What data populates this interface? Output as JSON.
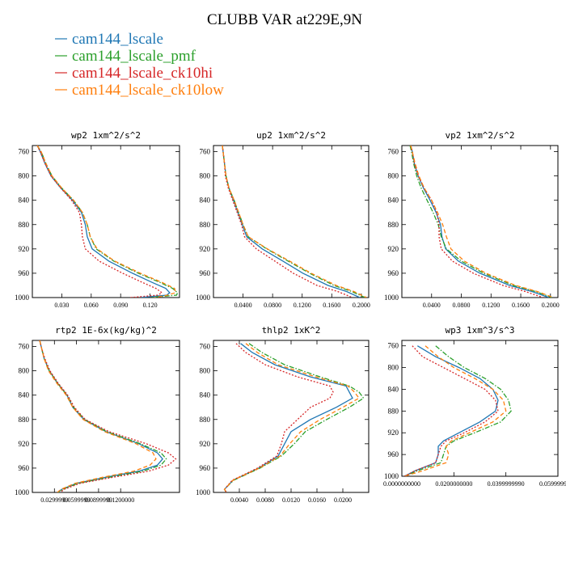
{
  "title": "CLUBB VAR at229E,9N",
  "legend": [
    {
      "name": "cam144_lscale",
      "color": "#1f77b4",
      "dash": "solid"
    },
    {
      "name": "cam144_lscale_pmf",
      "color": "#2ca02c",
      "dash": "dashdot"
    },
    {
      "name": "cam144_lscale_ck10hi",
      "color": "#d62728",
      "dash": "dotted"
    },
    {
      "name": "cam144_lscale_ck10low",
      "color": "#ff7f0e",
      "dash": "dashed"
    }
  ],
  "chart_data": [
    {
      "type": "line",
      "title": "wp2   1xm^2/s^2",
      "xlim": [
        0,
        0.15
      ],
      "xticks": [
        0.03,
        0.06,
        0.09,
        0.12
      ],
      "xtick_labels": [
        "0.030",
        "0.060",
        "0.090",
        "0.120"
      ],
      "ylim": [
        750,
        1000
      ],
      "yticks": [
        760,
        800,
        840,
        880,
        920,
        960,
        1000
      ],
      "y_inverted": true,
      "grid": false,
      "y": [
        750,
        760,
        780,
        800,
        820,
        840,
        860,
        880,
        900,
        920,
        940,
        960,
        975,
        985,
        992,
        996,
        1000
      ],
      "series": [
        {
          "name": "cam144_lscale",
          "x": [
            0.005,
            0.008,
            0.013,
            0.019,
            0.029,
            0.041,
            0.05,
            0.054,
            0.056,
            0.061,
            0.078,
            0.102,
            0.122,
            0.136,
            0.14,
            0.137,
            0.11
          ]
        },
        {
          "name": "cam144_lscale_pmf",
          "x": [
            0.005,
            0.009,
            0.014,
            0.02,
            0.03,
            0.042,
            0.051,
            0.056,
            0.059,
            0.065,
            0.083,
            0.108,
            0.13,
            0.143,
            0.148,
            0.147,
            0.12
          ]
        },
        {
          "name": "cam144_lscale_ck10hi",
          "x": [
            0.005,
            0.008,
            0.013,
            0.019,
            0.029,
            0.04,
            0.048,
            0.05,
            0.051,
            0.054,
            0.068,
            0.092,
            0.112,
            0.126,
            0.132,
            0.128,
            0.1
          ]
        },
        {
          "name": "cam144_lscale_ck10low",
          "x": [
            0.005,
            0.009,
            0.014,
            0.02,
            0.03,
            0.042,
            0.051,
            0.056,
            0.059,
            0.066,
            0.084,
            0.11,
            0.132,
            0.145,
            0.146,
            0.138,
            0.125
          ]
        }
      ]
    },
    {
      "type": "line",
      "title": "up2   1xm^2/s^2",
      "xlim": [
        0,
        0.21
      ],
      "xticks": [
        0.04,
        0.08,
        0.12,
        0.16,
        0.2
      ],
      "xtick_labels": [
        "0.0400",
        "0.0800",
        "0.1200",
        "0.1600",
        "0.2000"
      ],
      "ylim": [
        750,
        1000
      ],
      "yticks": [
        760,
        800,
        840,
        880,
        920,
        960,
        1000
      ],
      "y_inverted": true,
      "grid": false,
      "y": [
        750,
        760,
        780,
        800,
        820,
        840,
        860,
        880,
        900,
        920,
        940,
        960,
        980,
        990,
        1000
      ],
      "series": [
        {
          "name": "cam144_lscale",
          "x": [
            0.012,
            0.013,
            0.015,
            0.017,
            0.021,
            0.027,
            0.033,
            0.039,
            0.045,
            0.066,
            0.094,
            0.121,
            0.155,
            0.18,
            0.198
          ]
        },
        {
          "name": "cam144_lscale_pmf",
          "x": [
            0.012,
            0.013,
            0.015,
            0.017,
            0.021,
            0.028,
            0.034,
            0.04,
            0.047,
            0.072,
            0.101,
            0.13,
            0.163,
            0.187,
            0.205
          ]
        },
        {
          "name": "cam144_lscale_ck10hi",
          "x": [
            0.012,
            0.013,
            0.015,
            0.016,
            0.02,
            0.026,
            0.032,
            0.038,
            0.042,
            0.058,
            0.083,
            0.108,
            0.14,
            0.168,
            0.188
          ]
        },
        {
          "name": "cam144_lscale_ck10low",
          "x": [
            0.012,
            0.013,
            0.015,
            0.017,
            0.021,
            0.028,
            0.034,
            0.04,
            0.047,
            0.073,
            0.103,
            0.132,
            0.166,
            0.19,
            0.207
          ]
        }
      ]
    },
    {
      "type": "line",
      "title": "vp2   1xm^2/s^2",
      "xlim": [
        0,
        0.21
      ],
      "xticks": [
        0.04,
        0.08,
        0.12,
        0.16,
        0.2
      ],
      "xtick_labels": [
        "0.0400",
        "0.0800",
        "0.1200",
        "0.1600",
        "0.2000"
      ],
      "ylim": [
        750,
        1000
      ],
      "yticks": [
        760,
        800,
        840,
        880,
        920,
        960,
        1000
      ],
      "y_inverted": true,
      "grid": false,
      "y": [
        750,
        760,
        780,
        800,
        820,
        840,
        860,
        880,
        900,
        920,
        940,
        960,
        980,
        990,
        1000
      ],
      "series": [
        {
          "name": "cam144_lscale",
          "x": [
            0.012,
            0.014,
            0.017,
            0.022,
            0.029,
            0.038,
            0.046,
            0.052,
            0.054,
            0.059,
            0.076,
            0.105,
            0.145,
            0.175,
            0.198
          ]
        },
        {
          "name": "cam144_lscale_pmf",
          "x": [
            0.011,
            0.013,
            0.016,
            0.02,
            0.026,
            0.034,
            0.042,
            0.049,
            0.053,
            0.06,
            0.08,
            0.11,
            0.15,
            0.18,
            0.202
          ]
        },
        {
          "name": "cam144_lscale_ck10hi",
          "x": [
            0.012,
            0.014,
            0.017,
            0.022,
            0.03,
            0.04,
            0.047,
            0.05,
            0.05,
            0.053,
            0.068,
            0.096,
            0.136,
            0.166,
            0.19
          ]
        },
        {
          "name": "cam144_lscale_ck10low",
          "x": [
            0.012,
            0.014,
            0.018,
            0.023,
            0.03,
            0.04,
            0.048,
            0.055,
            0.06,
            0.066,
            0.084,
            0.113,
            0.153,
            0.182,
            0.204
          ]
        }
      ]
    },
    {
      "type": "line",
      "title": "rtp2   1E-6x(kg/kg)^2",
      "xlim": [
        0,
        0.2
      ],
      "xticks": [
        0.03,
        0.06,
        0.09,
        0.12
      ],
      "xtick_labels": [
        "0.0299999",
        "0.0599999",
        "0.0899999",
        "0.1200000"
      ],
      "ylim": [
        750,
        1000
      ],
      "yticks": [
        760,
        800,
        840,
        880,
        920,
        960,
        1000
      ],
      "y_inverted": true,
      "grid": false,
      "y": [
        750,
        760,
        780,
        800,
        820,
        840,
        860,
        880,
        900,
        920,
        935,
        945,
        955,
        965,
        975,
        985,
        995,
        1000
      ],
      "series": [
        {
          "name": "cam144_lscale",
          "x": [
            0.01,
            0.012,
            0.016,
            0.023,
            0.034,
            0.047,
            0.055,
            0.07,
            0.1,
            0.145,
            0.17,
            0.177,
            0.17,
            0.145,
            0.1,
            0.06,
            0.04,
            0.035
          ]
        },
        {
          "name": "cam144_lscale_pmf",
          "x": [
            0.01,
            0.012,
            0.016,
            0.023,
            0.034,
            0.047,
            0.056,
            0.071,
            0.101,
            0.147,
            0.175,
            0.182,
            0.175,
            0.15,
            0.105,
            0.062,
            0.041,
            0.036
          ]
        },
        {
          "name": "cam144_lscale_ck10hi",
          "x": [
            0.01,
            0.012,
            0.017,
            0.024,
            0.035,
            0.048,
            0.057,
            0.072,
            0.104,
            0.155,
            0.185,
            0.195,
            0.185,
            0.158,
            0.11,
            0.065,
            0.043,
            0.038
          ]
        },
        {
          "name": "cam144_lscale_ck10low",
          "x": [
            0.01,
            0.012,
            0.016,
            0.022,
            0.033,
            0.046,
            0.055,
            0.069,
            0.098,
            0.141,
            0.164,
            0.168,
            0.16,
            0.138,
            0.096,
            0.058,
            0.039,
            0.034
          ]
        }
      ]
    },
    {
      "type": "line",
      "title": "thlp2   1xK^2",
      "xlim": [
        0,
        0.024
      ],
      "xticks": [
        0.004,
        0.008,
        0.012,
        0.016,
        0.02
      ],
      "xtick_labels": [
        "0.0040",
        "0.0080",
        "0.0120",
        "0.0160",
        "0.0200"
      ],
      "ylim": [
        750,
        1000
      ],
      "yticks": [
        760,
        800,
        840,
        880,
        920,
        960,
        1000
      ],
      "y_inverted": true,
      "grid": false,
      "y": [
        755,
        770,
        790,
        810,
        825,
        835,
        845,
        860,
        880,
        900,
        920,
        940,
        960,
        980,
        995,
        1000
      ],
      "series": [
        {
          "name": "cam144_lscale",
          "x": [
            0.0042,
            0.006,
            0.0095,
            0.015,
            0.0205,
            0.021,
            0.0215,
            0.019,
            0.015,
            0.012,
            0.011,
            0.01,
            0.007,
            0.003,
            0.0017,
            0.002
          ]
        },
        {
          "name": "cam144_lscale_pmf",
          "x": [
            0.0055,
            0.0075,
            0.011,
            0.0165,
            0.021,
            0.0225,
            0.0232,
            0.021,
            0.0175,
            0.0142,
            0.0125,
            0.0105,
            0.0072,
            0.0031,
            0.0017,
            0.002
          ]
        },
        {
          "name": "cam144_lscale_ck10hi",
          "x": [
            0.0035,
            0.005,
            0.008,
            0.013,
            0.018,
            0.0185,
            0.018,
            0.015,
            0.013,
            0.011,
            0.0105,
            0.0098,
            0.0068,
            0.0029,
            0.0017,
            0.002
          ]
        },
        {
          "name": "cam144_lscale_ck10low",
          "x": [
            0.005,
            0.0068,
            0.01,
            0.0158,
            0.0208,
            0.0218,
            0.0225,
            0.02,
            0.0165,
            0.0135,
            0.0118,
            0.0103,
            0.0071,
            0.003,
            0.0017,
            0.002
          ]
        }
      ]
    },
    {
      "type": "line",
      "title": "wp3   1xm^3/s^3",
      "xlim": [
        0,
        0.06
      ],
      "xticks": [
        0,
        0.02,
        0.04,
        0.06
      ],
      "xtick_labels": [
        "0.0000000000",
        "0.0200000000",
        "0.0399999990",
        "0.0599999990"
      ],
      "ylim": [
        750,
        1000
      ],
      "yticks": [
        760,
        800,
        840,
        880,
        920,
        960,
        1000
      ],
      "y_inverted": true,
      "grid": false,
      "y": [
        760,
        780,
        800,
        820,
        840,
        860,
        880,
        900,
        920,
        935,
        945,
        960,
        975,
        990,
        1000
      ],
      "series": [
        {
          "name": "cam144_lscale",
          "x": [
            0.006,
            0.013,
            0.022,
            0.03,
            0.035,
            0.037,
            0.036,
            0.03,
            0.022,
            0.016,
            0.014,
            0.014,
            0.013,
            0.005,
            0.001
          ]
        },
        {
          "name": "cam144_lscale_pmf",
          "x": [
            0.013,
            0.018,
            0.024,
            0.032,
            0.038,
            0.041,
            0.042,
            0.038,
            0.028,
            0.02,
            0.017,
            0.016,
            0.015,
            0.006,
            0.001
          ]
        },
        {
          "name": "cam144_lscale_ck10hi",
          "x": [
            0.004,
            0.008,
            0.016,
            0.024,
            0.032,
            0.036,
            0.037,
            0.032,
            0.024,
            0.017,
            0.015,
            0.014,
            0.013,
            0.005,
            0.001
          ]
        },
        {
          "name": "cam144_lscale_ck10low",
          "x": [
            0.009,
            0.014,
            0.02,
            0.028,
            0.035,
            0.039,
            0.04,
            0.035,
            0.026,
            0.019,
            0.017,
            0.018,
            0.017,
            0.008,
            0.001
          ]
        }
      ]
    }
  ]
}
